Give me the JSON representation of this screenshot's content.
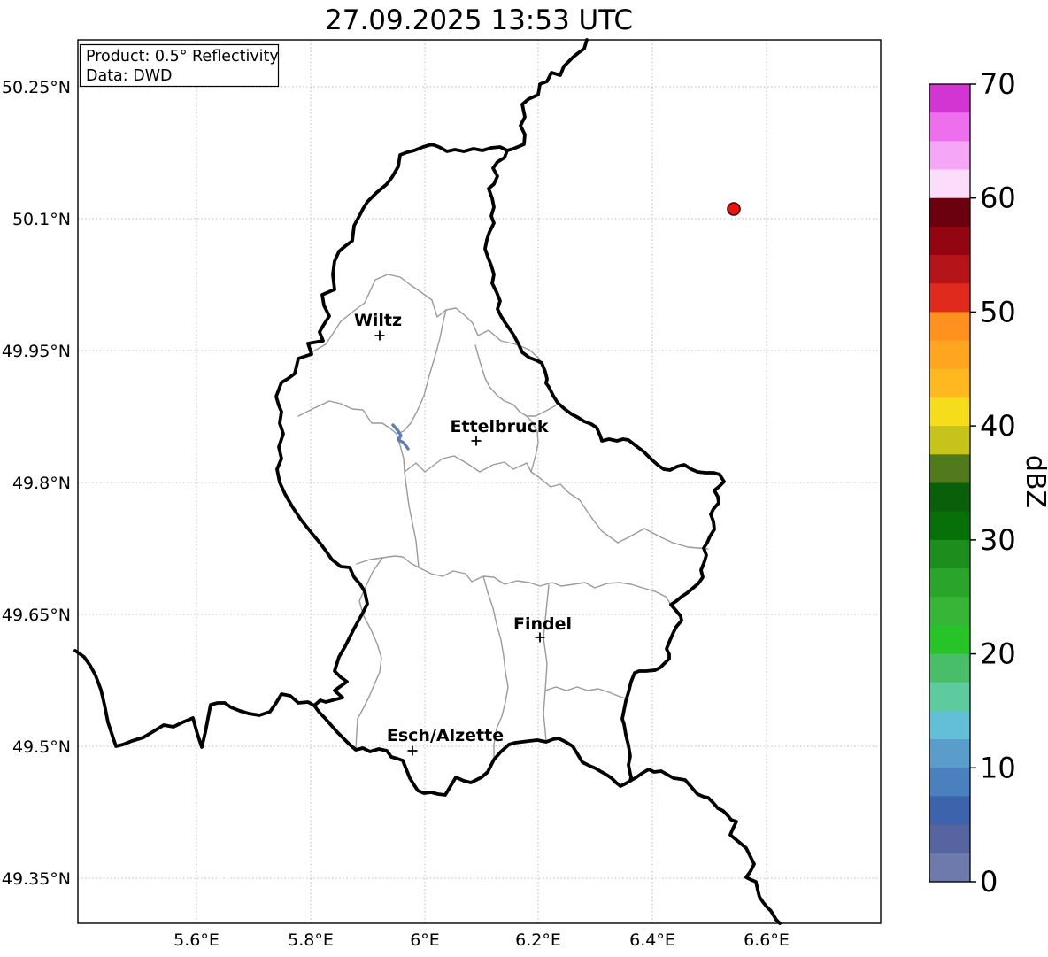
{
  "title": "27.09.2025 13:53 UTC",
  "info_box": {
    "product": "Product: 0.5° Reflectivity",
    "data_source": "Data: DWD"
  },
  "map": {
    "cities": [
      {
        "name": "Wiltz"
      },
      {
        "name": "Ettelbruck"
      },
      {
        "name": "Findel"
      },
      {
        "name": "Esch/Alzette"
      }
    ],
    "radar_marker_color": "#ee1111",
    "national_border_color": "#000000",
    "district_border_color": "#9a9a9a",
    "river_color": "#5b7fb5"
  },
  "axes": {
    "lat_ticks": [
      "50.25°N",
      "50.1°N",
      "49.95°N",
      "49.8°N",
      "49.65°N",
      "49.5°N",
      "49.35°N"
    ],
    "lon_ticks": [
      "5.6°E",
      "5.8°E",
      "6°E",
      "6.2°E",
      "6.4°E",
      "6.6°E"
    ]
  },
  "colorbar": {
    "label": "dBZ",
    "range": [
      0,
      70
    ],
    "tick_labels": [
      "0",
      "10",
      "20",
      "30",
      "40",
      "50",
      "60",
      "70"
    ],
    "colors_top_to_bottom": [
      "#d335d3",
      "#ee6fee",
      "#f6a6f6",
      "#fbdcfb",
      "#6b000e",
      "#920511",
      "#b51419",
      "#e02a1e",
      "#ff911e",
      "#ffa51f",
      "#ffb81f",
      "#f5dd1c",
      "#c6c31b",
      "#507a1c",
      "#0a5f0a",
      "#087008",
      "#1d8e1d",
      "#2aa42a",
      "#36b536",
      "#27c427",
      "#49bd68",
      "#5ecb9f",
      "#63bed8",
      "#5a9cca",
      "#4a80bd",
      "#3d63ac",
      "#56659f",
      "#6d7aab"
    ]
  }
}
